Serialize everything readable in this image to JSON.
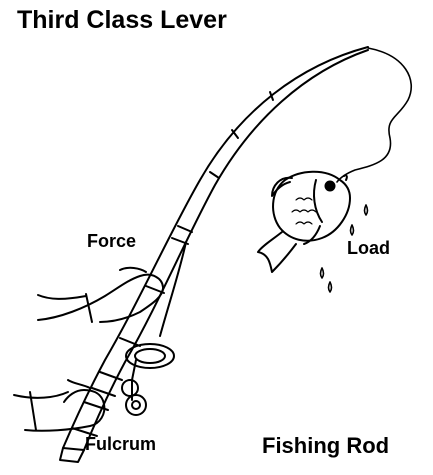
{
  "diagram": {
    "title": "Third Class Lever",
    "labels": {
      "force": "Force",
      "load": "Load",
      "fulcrum": "Fulcrum",
      "object": "Fishing Rod"
    }
  },
  "colors": {
    "ink": "#000000",
    "background": "#ffffff"
  },
  "icons": [
    "fishing-rod-icon",
    "fish-icon",
    "hand-icon",
    "reel-icon",
    "water-drop-icon"
  ]
}
